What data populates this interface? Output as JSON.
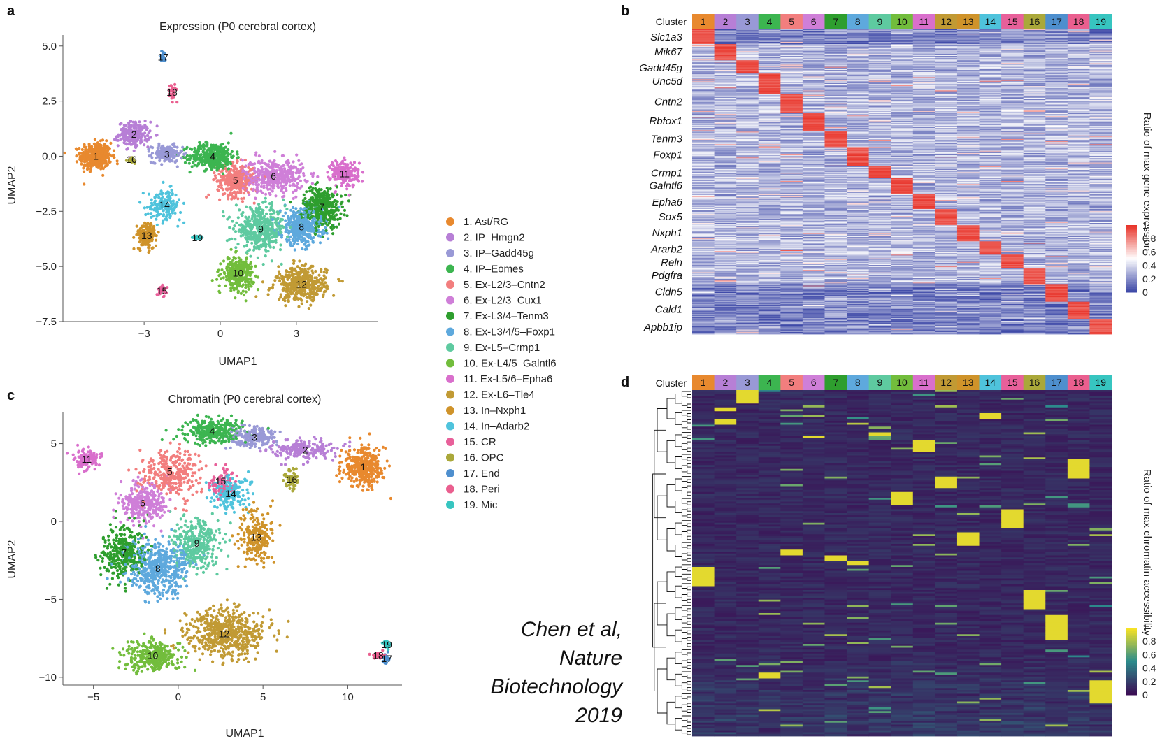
{
  "panels": {
    "a": {
      "letter": "a",
      "title": "Expression (P0 cerebral cortex)",
      "xlabel": "UMAP1",
      "ylabel": "UMAP2"
    },
    "b": {
      "letter": "b",
      "cluster_header": "Cluster",
      "colorbar_title": "Ratio of max gene expression"
    },
    "c": {
      "letter": "c",
      "title": "Chromatin (P0 cerebral cortex)",
      "xlabel": "UMAP1",
      "ylabel": "UMAP2"
    },
    "d": {
      "letter": "d",
      "cluster_header": "Cluster",
      "colorbar_title": "Ratio of max chromatin accessibility"
    }
  },
  "citation": {
    "lines": [
      "Chen et al,",
      "Nature",
      "Biotechnology",
      "2019"
    ]
  },
  "colors": {
    "cluster_colors": [
      "#e8892e",
      "#b77fd6",
      "#9999d6",
      "#3cb550",
      "#f27e7e",
      "#cf7fd8",
      "#2e9e2e",
      "#5ea9dd",
      "#5ecaa0",
      "#72bd3c",
      "#d96fcc",
      "#c19a34",
      "#cf932a",
      "#4fc3dc",
      "#e8609a",
      "#aaa83a",
      "#4e8fce",
      "#ea5f8f",
      "#37c5c0"
    ],
    "heat_expr": [
      "#3f4aa8",
      "#ffffff",
      "#e8342a"
    ],
    "heat_chrom": [
      "#3b0f55",
      "#2c8c8c",
      "#f7e225"
    ]
  },
  "chart_data": [
    {
      "id": "a",
      "type": "scatter",
      "title": "Expression (P0 cerebral cortex)",
      "xlabel": "UMAP1",
      "ylabel": "UMAP2",
      "xlim": [
        -6.2,
        6.2
      ],
      "ylim": [
        -7.5,
        5.5
      ],
      "xticks": [
        -3,
        0,
        3
      ],
      "yticks": [
        5.0,
        2.5,
        0.0,
        -2.5,
        -5.0,
        -7.5
      ],
      "ytick_labels": [
        "5.0",
        "2.5",
        "0.0",
        "−2.5",
        "−5.0",
        "−7.5"
      ],
      "legend": [
        "1. Ast/RG",
        "2. IP–Hmgn2",
        "3. IP–Gadd45g",
        "4. IP–Eomes",
        "5. Ex-L2/3–Cntn2",
        "6. Ex-L2/3–Cux1",
        "7. Ex-L3/4–Tenm3",
        "8. Ex-L3/4/5–Foxp1",
        "9. Ex-L5–Crmp1",
        "10. Ex-L4/5–Galntl6",
        "11. Ex-L5/6–Epha6",
        "12. Ex-L6–Tle4",
        "13. In–Nxph1",
        "14. In–Adarb2",
        "15. CR",
        "16. OPC",
        "17. End",
        "18. Peri",
        "19. Mic"
      ],
      "clusters": [
        {
          "id": 1,
          "cx": -4.9,
          "cy": 0.0,
          "rx": 0.55,
          "ry": 0.55,
          "n": 420
        },
        {
          "id": 2,
          "cx": -3.4,
          "cy": 1.0,
          "rx": 0.55,
          "ry": 0.5,
          "n": 220
        },
        {
          "id": 3,
          "cx": -2.1,
          "cy": 0.1,
          "rx": 0.55,
          "ry": 0.35,
          "n": 170
        },
        {
          "id": 4,
          "cx": -0.3,
          "cy": 0.0,
          "rx": 0.8,
          "ry": 0.55,
          "n": 380
        },
        {
          "id": 5,
          "cx": 0.6,
          "cy": -1.1,
          "rx": 0.65,
          "ry": 0.65,
          "n": 320
        },
        {
          "id": 6,
          "cx": 2.1,
          "cy": -0.9,
          "rx": 1.1,
          "ry": 0.7,
          "n": 420
        },
        {
          "id": 7,
          "cx": 4.0,
          "cy": -2.3,
          "rx": 0.7,
          "ry": 0.85,
          "n": 380
        },
        {
          "id": 8,
          "cx": 3.2,
          "cy": -3.2,
          "rx": 0.75,
          "ry": 0.75,
          "n": 400
        },
        {
          "id": 9,
          "cx": 1.6,
          "cy": -3.3,
          "rx": 0.9,
          "ry": 0.85,
          "n": 440
        },
        {
          "id": 10,
          "cx": 0.7,
          "cy": -5.3,
          "rx": 0.55,
          "ry": 0.65,
          "n": 300
        },
        {
          "id": 11,
          "cx": 4.9,
          "cy": -0.8,
          "rx": 0.5,
          "ry": 0.55,
          "n": 200
        },
        {
          "id": 12,
          "cx": 3.2,
          "cy": -5.8,
          "rx": 0.9,
          "ry": 0.7,
          "n": 420
        },
        {
          "id": 13,
          "cx": -2.9,
          "cy": -3.6,
          "rx": 0.35,
          "ry": 0.55,
          "n": 160
        },
        {
          "id": 14,
          "cx": -2.2,
          "cy": -2.2,
          "rx": 0.6,
          "ry": 0.6,
          "n": 170
        },
        {
          "id": 15,
          "cx": -2.3,
          "cy": -6.1,
          "rx": 0.18,
          "ry": 0.18,
          "n": 30
        },
        {
          "id": 16,
          "cx": -3.5,
          "cy": -0.15,
          "rx": 0.12,
          "ry": 0.12,
          "n": 18
        },
        {
          "id": 17,
          "cx": -2.25,
          "cy": 4.5,
          "rx": 0.1,
          "ry": 0.25,
          "n": 22
        },
        {
          "id": 18,
          "cx": -1.9,
          "cy": 2.9,
          "rx": 0.18,
          "ry": 0.3,
          "n": 30
        },
        {
          "id": 19,
          "cx": -0.9,
          "cy": -3.7,
          "rx": 0.14,
          "ry": 0.08,
          "n": 20
        }
      ]
    },
    {
      "id": "c",
      "type": "scatter",
      "title": "Chromatin (P0 cerebral cortex)",
      "xlabel": "UMAP1",
      "ylabel": "UMAP2",
      "xlim": [
        -6.8,
        13.2
      ],
      "ylim": [
        -10.5,
        7.0
      ],
      "xticks": [
        -5,
        0,
        5,
        10
      ],
      "yticks": [
        5,
        0,
        -5,
        -10
      ],
      "ytick_labels": [
        "5",
        "0",
        "−5",
        "−10"
      ],
      "clusters": [
        {
          "id": 1,
          "cx": 10.9,
          "cy": 3.5,
          "rx": 1.1,
          "ry": 1.1,
          "n": 380
        },
        {
          "id": 2,
          "cx": 7.5,
          "cy": 4.6,
          "rx": 1.8,
          "ry": 0.6,
          "n": 200
        },
        {
          "id": 3,
          "cx": 4.5,
          "cy": 5.4,
          "rx": 1.2,
          "ry": 0.6,
          "n": 200
        },
        {
          "id": 4,
          "cx": 2.0,
          "cy": 5.8,
          "rx": 1.6,
          "ry": 0.7,
          "n": 300
        },
        {
          "id": 5,
          "cx": -0.5,
          "cy": 3.2,
          "rx": 1.5,
          "ry": 1.4,
          "n": 300
        },
        {
          "id": 6,
          "cx": -2.1,
          "cy": 1.2,
          "rx": 1.2,
          "ry": 1.2,
          "n": 300
        },
        {
          "id": 7,
          "cx": -3.2,
          "cy": -2.0,
          "rx": 1.2,
          "ry": 1.6,
          "n": 320
        },
        {
          "id": 8,
          "cx": -1.2,
          "cy": -3.0,
          "rx": 1.6,
          "ry": 1.5,
          "n": 500
        },
        {
          "id": 9,
          "cx": 1.1,
          "cy": -1.4,
          "rx": 1.3,
          "ry": 1.5,
          "n": 320
        },
        {
          "id": 10,
          "cx": -1.5,
          "cy": -8.6,
          "rx": 1.5,
          "ry": 0.9,
          "n": 320
        },
        {
          "id": 11,
          "cx": -5.4,
          "cy": 4.0,
          "rx": 0.7,
          "ry": 0.6,
          "n": 120
        },
        {
          "id": 12,
          "cx": 2.7,
          "cy": -7.2,
          "rx": 2.1,
          "ry": 1.4,
          "n": 560
        },
        {
          "id": 13,
          "cx": 4.6,
          "cy": -1.0,
          "rx": 0.9,
          "ry": 1.6,
          "n": 220
        },
        {
          "id": 14,
          "cx": 3.1,
          "cy": 1.8,
          "rx": 1.0,
          "ry": 1.0,
          "n": 180
        },
        {
          "id": 15,
          "cx": 2.5,
          "cy": 2.6,
          "rx": 0.8,
          "ry": 0.8,
          "n": 80
        },
        {
          "id": 16,
          "cx": 6.7,
          "cy": 2.7,
          "rx": 0.35,
          "ry": 0.6,
          "n": 60
        },
        {
          "id": 17,
          "cx": 12.3,
          "cy": -8.8,
          "rx": 0.25,
          "ry": 0.3,
          "n": 30
        },
        {
          "id": 18,
          "cx": 11.8,
          "cy": -8.6,
          "rx": 0.45,
          "ry": 0.25,
          "n": 40
        },
        {
          "id": 19,
          "cx": 12.3,
          "cy": -7.9,
          "rx": 0.25,
          "ry": 0.25,
          "n": 30
        }
      ]
    },
    {
      "id": "b",
      "type": "heatmap",
      "columns": [
        "1",
        "2",
        "3",
        "4",
        "5",
        "6",
        "7",
        "8",
        "9",
        "10",
        "11",
        "12",
        "13",
        "14",
        "15",
        "16",
        "17",
        "18",
        "19"
      ],
      "genes": [
        "Slc1a3",
        "Mik67",
        "Gadd45g",
        "Unc5d",
        "Cntn2",
        "Rbfox1",
        "Tenm3",
        "Foxp1",
        "Crmp1",
        "Galntl6",
        "Epha6",
        "Sox5",
        "Nxph1",
        "Ararb2",
        "Reln",
        "Pdgfra",
        "Cldn5",
        "Cald1",
        "Apbb1ip"
      ],
      "colorbar_ticks": [
        "1",
        "0.8",
        "0.6",
        "0.4",
        "0.2",
        "0"
      ],
      "clim": [
        0,
        1
      ],
      "block_rows": [
        20,
        22,
        18,
        28,
        26,
        24,
        22,
        26,
        16,
        22,
        20,
        22,
        22,
        18,
        18,
        22,
        24,
        24,
        20
      ]
    },
    {
      "id": "d",
      "type": "heatmap",
      "columns": [
        "1",
        "2",
        "3",
        "4",
        "5",
        "6",
        "7",
        "8",
        "9",
        "10",
        "11",
        "12",
        "13",
        "14",
        "15",
        "16",
        "17",
        "18",
        "19"
      ],
      "colorbar_ticks": [
        "1",
        "0.8",
        "0.6",
        "0.4",
        "0.2",
        "0"
      ],
      "clim": [
        0,
        1
      ],
      "spots": [
        {
          "col": 3,
          "y0": 0.0,
          "y1": 0.035
        },
        {
          "col": 2,
          "y0": 0.045,
          "y1": 0.06
        },
        {
          "col": 2,
          "y0": 0.082,
          "y1": 0.097
        },
        {
          "col": 14,
          "y0": 0.065,
          "y1": 0.08
        },
        {
          "col": 6,
          "y0": 0.13,
          "y1": 0.138
        },
        {
          "col": 9,
          "y0": 0.118,
          "y1": 0.128
        },
        {
          "col": 11,
          "y0": 0.14,
          "y1": 0.175
        },
        {
          "col": 18,
          "y0": 0.195,
          "y1": 0.255
        },
        {
          "col": 12,
          "y0": 0.25,
          "y1": 0.28
        },
        {
          "col": 10,
          "y0": 0.29,
          "y1": 0.33
        },
        {
          "col": 15,
          "y0": 0.34,
          "y1": 0.395
        },
        {
          "col": 13,
          "y0": 0.408,
          "y1": 0.445
        },
        {
          "col": 5,
          "y0": 0.457,
          "y1": 0.475
        },
        {
          "col": 7,
          "y0": 0.475,
          "y1": 0.49
        },
        {
          "col": 8,
          "y0": 0.49,
          "y1": 0.5
        },
        {
          "col": 1,
          "y0": 0.51,
          "y1": 0.565
        },
        {
          "col": 16,
          "y0": 0.575,
          "y1": 0.63
        },
        {
          "col": 17,
          "y0": 0.645,
          "y1": 0.72
        },
        {
          "col": 4,
          "y0": 0.815,
          "y1": 0.83
        },
        {
          "col": 19,
          "y0": 0.835,
          "y1": 0.9
        }
      ]
    }
  ]
}
